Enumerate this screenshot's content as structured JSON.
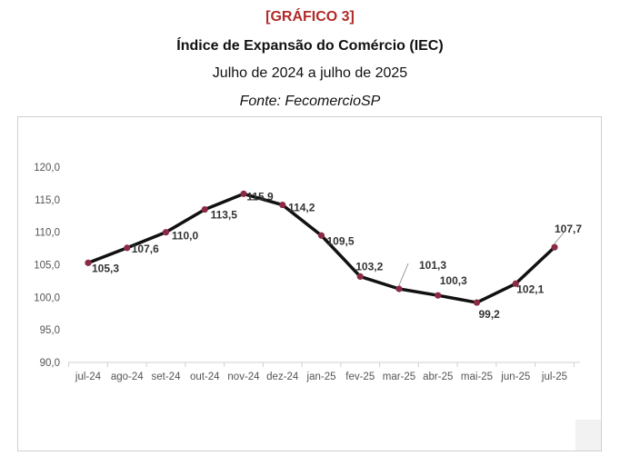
{
  "header": {
    "tag": "[GRÁFICO 3]",
    "title": "Índice de Expansão do Comércio (IEC)",
    "subtitle": "Julho de 2024 a julho de 2025",
    "source": "Fonte: FecomercioSP"
  },
  "colors": {
    "line": "#111111",
    "marker": "#8b2a45",
    "tag": "#b22a2a",
    "leader": "#999999"
  },
  "chart_data": {
    "type": "line",
    "title": "Índice de Expansão do Comércio (IEC)",
    "categories": [
      "jul-24",
      "ago-24",
      "set-24",
      "out-24",
      "nov-24",
      "dez-24",
      "jan-25",
      "fev-25",
      "mar-25",
      "abr-25",
      "mai-25",
      "jun-25",
      "jul-25"
    ],
    "values": [
      105.3,
      107.6,
      110.0,
      113.5,
      115.9,
      114.2,
      109.5,
      103.2,
      101.3,
      100.3,
      99.2,
      102.1,
      107.7
    ],
    "value_labels": [
      "105,3",
      "107,6",
      "110,0",
      "113,5",
      "115,9",
      "114,2",
      "109,5",
      "103,2",
      "101,3",
      "100,3",
      "99,2",
      "102,1",
      "107,7"
    ],
    "ylim": [
      90,
      120
    ],
    "yticks": [
      90,
      95,
      100,
      105,
      110,
      115,
      120
    ],
    "ytick_labels": [
      "90,0",
      "95,0",
      "100,0",
      "105,0",
      "110,0",
      "115,0",
      "120,0"
    ],
    "xlabel": "",
    "ylabel": "",
    "grid": false,
    "legend": "none"
  }
}
